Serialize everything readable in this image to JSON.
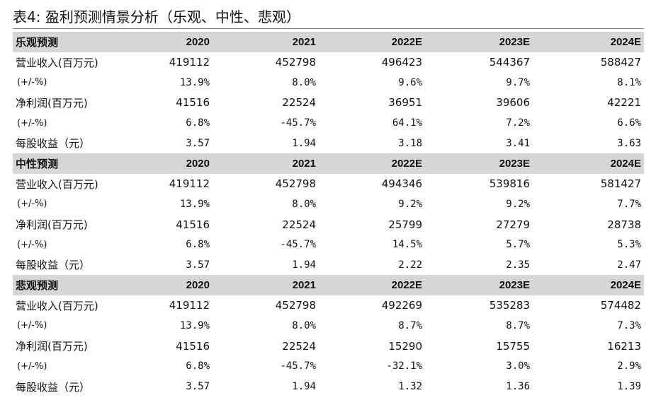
{
  "title": "表4: 盈利预测情景分析（乐观、中性、悲观）",
  "sections": [
    {
      "name": "乐观预测",
      "years": [
        "2020",
        "2021",
        "2022E",
        "2023E",
        "2024E"
      ],
      "rows": [
        {
          "label": "营业收入(百万元)",
          "values": [
            "419112",
            "452798",
            "496423",
            "544367",
            "588427"
          ],
          "kind": "num"
        },
        {
          "label": "(+/-%)",
          "values": [
            "13.9%",
            "8.0%",
            "9.6%",
            "9.7%",
            "8.1%"
          ],
          "kind": "pct"
        },
        {
          "label": "净利润(百万元)",
          "values": [
            "41516",
            "22524",
            "36951",
            "39606",
            "42221"
          ],
          "kind": "num"
        },
        {
          "label": "(+/-%)",
          "values": [
            "6.8%",
            "-45.7%",
            "64.1%",
            "7.2%",
            "6.6%"
          ],
          "kind": "pct"
        },
        {
          "label": "每股收益（元）",
          "values": [
            "3.57",
            "1.94",
            "3.18",
            "3.41",
            "3.63"
          ],
          "kind": "pct"
        }
      ]
    },
    {
      "name": "中性预测",
      "years": [
        "2020",
        "2021",
        "2022E",
        "2023E",
        "2024E"
      ],
      "rows": [
        {
          "label": "营业收入(百万元)",
          "values": [
            "419112",
            "452798",
            "494346",
            "539816",
            "581427"
          ],
          "kind": "num"
        },
        {
          "label": "(+/-%)",
          "values": [
            "13.9%",
            "8.0%",
            "9.2%",
            "9.2%",
            "7.7%"
          ],
          "kind": "pct"
        },
        {
          "label": "净利润(百万元)",
          "values": [
            "41516",
            "22524",
            "25799",
            "27279",
            "28738"
          ],
          "kind": "num"
        },
        {
          "label": "(+/-%)",
          "values": [
            "6.8%",
            "-45.7%",
            "14.5%",
            "5.7%",
            "5.3%"
          ],
          "kind": "pct"
        },
        {
          "label": "每股收益（元）",
          "values": [
            "3.57",
            "1.94",
            "2.22",
            "2.35",
            "2.47"
          ],
          "kind": "pct"
        }
      ]
    },
    {
      "name": "悲观预测",
      "years": [
        "2020",
        "2021",
        "2022E",
        "2023E",
        "2024E"
      ],
      "rows": [
        {
          "label": "营业收入(百万元)",
          "values": [
            "419112",
            "452798",
            "492269",
            "535283",
            "574482"
          ],
          "kind": "num"
        },
        {
          "label": "(+/-%)",
          "values": [
            "13.9%",
            "8.0%",
            "8.7%",
            "8.7%",
            "7.3%"
          ],
          "kind": "pct"
        },
        {
          "label": "净利润(百万元)",
          "values": [
            "41516",
            "22524",
            "15290",
            "15755",
            "16213"
          ],
          "kind": "num"
        },
        {
          "label": "(+/-%)",
          "values": [
            "6.8%",
            "-45.7%",
            "-32.1%",
            "3.0%",
            "2.9%"
          ],
          "kind": "pct"
        },
        {
          "label": "每股收益（元）",
          "values": [
            "3.57",
            "1.94",
            "1.32",
            "1.36",
            "1.39"
          ],
          "kind": "pct"
        }
      ]
    }
  ]
}
